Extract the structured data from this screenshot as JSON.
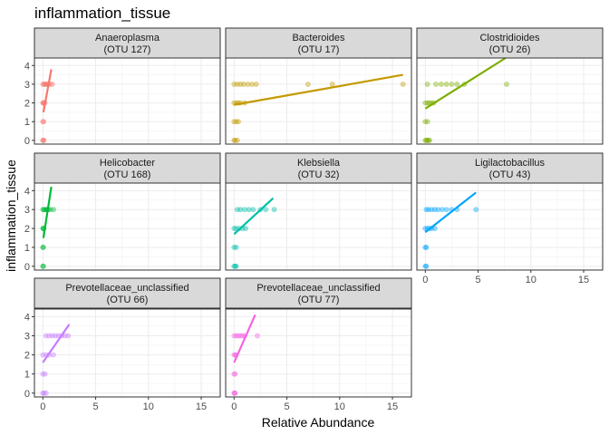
{
  "chart_data": {
    "type": "scatter",
    "title": "inflammation_tissue",
    "xlabel": "Relative Abundance",
    "ylabel": "inflammation_tissue",
    "xlim": [
      -0.8,
      16.8
    ],
    "ylim": [
      -0.2,
      4.4
    ],
    "x_ticks": [
      0,
      5,
      10,
      15
    ],
    "y_ticks": [
      0,
      1,
      2,
      3,
      4
    ],
    "grid": true,
    "panels": [
      {
        "name": "Anaeroplasma",
        "otu": "(OTU 127)",
        "color": "#F8766D",
        "points": [
          [
            0,
            0
          ],
          [
            0.05,
            0
          ],
          [
            0.1,
            0
          ],
          [
            0,
            1
          ],
          [
            0.08,
            1
          ],
          [
            0,
            2
          ],
          [
            0.05,
            2
          ],
          [
            0.1,
            2
          ],
          [
            0.2,
            2
          ],
          [
            0,
            3
          ],
          [
            0.1,
            3
          ],
          [
            0.2,
            3
          ],
          [
            0.3,
            3
          ],
          [
            0.4,
            3
          ],
          [
            0.5,
            3
          ],
          [
            0.7,
            3
          ],
          [
            0.9,
            3
          ]
        ],
        "fit": [
          [
            0.05,
            1.5
          ],
          [
            0.8,
            3.8
          ]
        ]
      },
      {
        "name": "Bacteroides",
        "otu": "(OTU 17)",
        "color": "#C49A00",
        "points": [
          [
            0,
            0
          ],
          [
            0.1,
            0
          ],
          [
            0.3,
            0
          ],
          [
            0,
            1
          ],
          [
            0.2,
            1
          ],
          [
            0.4,
            1
          ],
          [
            0,
            2
          ],
          [
            0.2,
            2
          ],
          [
            0.4,
            2
          ],
          [
            0.6,
            2
          ],
          [
            1.0,
            2
          ],
          [
            0,
            3
          ],
          [
            0.3,
            3
          ],
          [
            0.6,
            3
          ],
          [
            0.9,
            3
          ],
          [
            1.3,
            3
          ],
          [
            1.7,
            3
          ],
          [
            2.1,
            3
          ],
          [
            7.0,
            3
          ],
          [
            9.3,
            3
          ],
          [
            16.0,
            3
          ]
        ],
        "fit": [
          [
            0,
            1.9
          ],
          [
            16,
            3.5
          ]
        ]
      },
      {
        "name": "Clostridioides",
        "otu": "(OTU 26)",
        "color": "#7CAE00",
        "points": [
          [
            0,
            0
          ],
          [
            0.1,
            0
          ],
          [
            0.2,
            0
          ],
          [
            0.3,
            0
          ],
          [
            0.4,
            0
          ],
          [
            0,
            1
          ],
          [
            0.2,
            1
          ],
          [
            0,
            2
          ],
          [
            0.2,
            2
          ],
          [
            0.4,
            2
          ],
          [
            0.6,
            2
          ],
          [
            0.8,
            2
          ],
          [
            0.2,
            3
          ],
          [
            1.0,
            3
          ],
          [
            1.5,
            3
          ],
          [
            2.0,
            3
          ],
          [
            2.5,
            3
          ],
          [
            3.0,
            3
          ],
          [
            3.7,
            3
          ],
          [
            7.7,
            3
          ]
        ],
        "fit": [
          [
            0,
            1.7
          ],
          [
            7.6,
            4.4
          ]
        ]
      },
      {
        "name": "Helicobacter",
        "otu": "(OTU 168)",
        "color": "#00BA38",
        "points": [
          [
            0,
            0
          ],
          [
            0.05,
            0
          ],
          [
            0,
            1
          ],
          [
            0.05,
            1
          ],
          [
            0,
            2
          ],
          [
            0.05,
            2
          ],
          [
            0.1,
            2
          ],
          [
            0,
            3
          ],
          [
            0.1,
            3
          ],
          [
            0.2,
            3
          ],
          [
            0.3,
            3
          ],
          [
            0.4,
            3
          ],
          [
            0.5,
            3
          ],
          [
            0.7,
            3
          ],
          [
            1.0,
            3
          ]
        ],
        "fit": [
          [
            0.05,
            1.5
          ],
          [
            0.8,
            4.2
          ]
        ]
      },
      {
        "name": "Klebsiella",
        "otu": "(OTU 32)",
        "color": "#00BFAA",
        "points": [
          [
            0,
            0
          ],
          [
            0.1,
            0
          ],
          [
            0.2,
            0
          ],
          [
            0,
            1
          ],
          [
            0.2,
            1
          ],
          [
            0,
            2
          ],
          [
            0.2,
            2
          ],
          [
            0.5,
            2
          ],
          [
            0.8,
            2
          ],
          [
            1.1,
            2
          ],
          [
            0.3,
            3
          ],
          [
            0.6,
            3
          ],
          [
            1.0,
            3
          ],
          [
            1.4,
            3
          ],
          [
            1.8,
            3
          ],
          [
            2.5,
            3
          ],
          [
            3.0,
            3
          ],
          [
            3.8,
            3
          ]
        ],
        "fit": [
          [
            0,
            1.7
          ],
          [
            3.7,
            3.6
          ]
        ]
      },
      {
        "name": "Ligilactobacillus",
        "otu": "(OTU 43)",
        "color": "#00A5FF",
        "points": [
          [
            0,
            0
          ],
          [
            0.1,
            0
          ],
          [
            0,
            1
          ],
          [
            0.1,
            1
          ],
          [
            0,
            2
          ],
          [
            0.2,
            2
          ],
          [
            0.4,
            2
          ],
          [
            0.6,
            2
          ],
          [
            0.9,
            2
          ],
          [
            0.1,
            3
          ],
          [
            0.3,
            3
          ],
          [
            0.6,
            3
          ],
          [
            0.9,
            3
          ],
          [
            1.2,
            3
          ],
          [
            1.6,
            3
          ],
          [
            2.0,
            3
          ],
          [
            2.5,
            3
          ],
          [
            3.0,
            3
          ],
          [
            4.8,
            3
          ]
        ],
        "fit": [
          [
            0,
            1.8
          ],
          [
            4.8,
            3.9
          ]
        ]
      },
      {
        "name": "Prevotellaceae_unclassified",
        "otu": "(OTU 66)",
        "color": "#C77CFF",
        "points": [
          [
            0,
            0
          ],
          [
            0.1,
            0
          ],
          [
            0.3,
            0
          ],
          [
            0,
            1
          ],
          [
            0.2,
            1
          ],
          [
            0,
            2
          ],
          [
            0.3,
            2
          ],
          [
            0.6,
            2
          ],
          [
            1.0,
            2
          ],
          [
            0.3,
            3
          ],
          [
            0.6,
            3
          ],
          [
            0.9,
            3
          ],
          [
            1.2,
            3
          ],
          [
            1.5,
            3
          ],
          [
            1.8,
            3
          ],
          [
            2.1,
            3
          ],
          [
            2.4,
            3
          ]
        ],
        "fit": [
          [
            0,
            1.6
          ],
          [
            2.5,
            3.6
          ]
        ]
      },
      {
        "name": "Prevotellaceae_unclassified",
        "otu": "(OTU 77)",
        "color": "#F564E3",
        "points": [
          [
            0,
            0
          ],
          [
            0.05,
            0
          ],
          [
            0.1,
            0
          ],
          [
            0,
            1
          ],
          [
            0.1,
            1
          ],
          [
            0,
            2
          ],
          [
            0.1,
            2
          ],
          [
            0.2,
            2
          ],
          [
            0,
            3
          ],
          [
            0.2,
            3
          ],
          [
            0.4,
            3
          ],
          [
            0.6,
            3
          ],
          [
            0.8,
            3
          ],
          [
            1.0,
            3
          ],
          [
            2.2,
            3
          ]
        ],
        "fit": [
          [
            0,
            1.6
          ],
          [
            2.0,
            4.1
          ]
        ]
      }
    ]
  }
}
